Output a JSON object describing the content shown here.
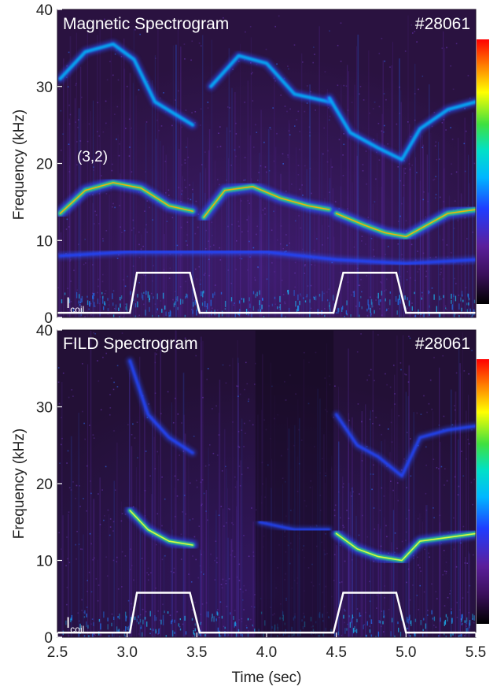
{
  "chart_data": [
    {
      "type": "heatmap",
      "title": "Magnetic Spectrogram",
      "shot_label": "#28061",
      "ylabel": "Frequency (kHz)",
      "xlim": [
        2.5,
        5.5
      ],
      "ylim": [
        0,
        40
      ],
      "y_ticks": [
        0,
        10,
        20,
        30,
        40
      ],
      "mode_label": "(3,2)",
      "coil_label_main": "I",
      "coil_label_sub": "coil",
      "colorbar": true,
      "colorscale": [
        "#000000",
        "#3a0f5a",
        "#5b1f9c",
        "#1f3cff",
        "#00b7ff",
        "#00e0c8",
        "#3fe03f",
        "#ffff00",
        "#ff8000",
        "#ff0000"
      ],
      "mode_traces": [
        {
          "name": "fundamental",
          "intensity": 1.0,
          "x": [
            2.52,
            2.7,
            2.9,
            3.1,
            3.3,
            3.47
          ],
          "y": [
            13.5,
            16.5,
            17.5,
            16.8,
            14.5,
            13.8
          ]
        },
        {
          "name": "fundamental",
          "intensity": 1.0,
          "x": [
            3.55,
            3.7,
            3.9,
            4.1,
            4.3,
            4.45
          ],
          "y": [
            13.0,
            16.5,
            17.0,
            15.5,
            14.5,
            14.0
          ]
        },
        {
          "name": "fundamental",
          "intensity": 1.0,
          "x": [
            4.5,
            4.7,
            4.85,
            5.0,
            5.15,
            5.3,
            5.5
          ],
          "y": [
            13.5,
            12.0,
            11.0,
            10.5,
            12.0,
            13.5,
            14.0
          ]
        },
        {
          "name": "harmonic",
          "intensity": 0.55,
          "x": [
            2.52,
            2.7,
            2.9,
            3.05,
            3.2,
            3.47
          ],
          "y": [
            31.0,
            34.5,
            35.5,
            33.5,
            28.0,
            25.0
          ]
        },
        {
          "name": "harmonic",
          "intensity": 0.55,
          "x": [
            3.6,
            3.8,
            4.0,
            4.2,
            4.45
          ],
          "y": [
            30.0,
            34.0,
            33.0,
            29.0,
            28.0
          ]
        },
        {
          "name": "harmonic",
          "intensity": 0.55,
          "x": [
            4.45,
            4.6,
            4.8,
            4.97,
            5.1,
            5.3,
            5.5
          ],
          "y": [
            28.5,
            24.0,
            22.0,
            20.5,
            24.5,
            27.0,
            28.0
          ]
        },
        {
          "name": "lower band",
          "intensity": 0.35,
          "x": [
            2.52,
            3.0,
            3.5,
            4.0,
            4.5,
            5.0,
            5.5
          ],
          "y": [
            8.0,
            8.5,
            8.5,
            8.5,
            7.5,
            7.0,
            7.5
          ]
        }
      ],
      "coil_current": {
        "x": [
          2.5,
          3.02,
          3.07,
          3.45,
          3.52,
          4.48,
          4.55,
          4.93,
          5.0,
          5.5
        ],
        "y": [
          0.6,
          0.6,
          5.8,
          5.8,
          0.6,
          0.6,
          5.8,
          5.8,
          0.6,
          0.6
        ]
      }
    },
    {
      "type": "heatmap",
      "title": "FILD Spectrogram",
      "shot_label": "#28061",
      "ylabel": "Frequency (kHz)",
      "xlabel": "Time (sec)",
      "xlim": [
        2.5,
        5.5
      ],
      "ylim": [
        0,
        40
      ],
      "y_ticks": [
        0,
        10,
        20,
        30,
        40
      ],
      "x_ticks": [
        2.5,
        3.0,
        3.5,
        4.0,
        4.5,
        5.0,
        5.5
      ],
      "x_tick_labels": [
        "2.5",
        "3.0",
        "3.5",
        "4.0",
        "4.5",
        "5.0",
        "5.5"
      ],
      "coil_label_main": "I",
      "coil_label_sub": "coil",
      "colorbar": true,
      "colorscale": [
        "#000000",
        "#3a0f5a",
        "#5b1f9c",
        "#1f3cff",
        "#00b7ff",
        "#00e0c8",
        "#3fe03f",
        "#ffff00",
        "#ff8000",
        "#ff0000"
      ],
      "mode_traces": [
        {
          "name": "fundamental",
          "intensity": 0.8,
          "x": [
            3.02,
            3.15,
            3.3,
            3.47
          ],
          "y": [
            16.5,
            14.0,
            12.5,
            12.0
          ]
        },
        {
          "name": "fundamental",
          "intensity": 0.25,
          "x": [
            3.95,
            4.2,
            4.45
          ],
          "y": [
            15.0,
            14.0,
            14.0
          ]
        },
        {
          "name": "fundamental",
          "intensity": 0.85,
          "x": [
            4.5,
            4.65,
            4.8,
            4.97,
            5.1,
            5.3,
            5.5
          ],
          "y": [
            13.5,
            11.5,
            10.5,
            10.0,
            12.5,
            13.0,
            13.5
          ]
        },
        {
          "name": "harmonic",
          "intensity": 0.35,
          "x": [
            3.02,
            3.15,
            3.3,
            3.47
          ],
          "y": [
            36.0,
            29.0,
            26.0,
            24.0
          ]
        },
        {
          "name": "harmonic",
          "intensity": 0.3,
          "x": [
            4.5,
            4.65,
            4.8,
            4.97,
            5.1,
            5.3,
            5.5
          ],
          "y": [
            29.0,
            25.0,
            23.5,
            21.0,
            26.0,
            27.0,
            27.5
          ]
        }
      ],
      "dark_interval": [
        3.92,
        4.48
      ],
      "coil_current": {
        "x": [
          2.5,
          3.02,
          3.07,
          3.45,
          3.52,
          4.48,
          4.55,
          4.93,
          5.0,
          5.5
        ],
        "y": [
          0.6,
          0.6,
          5.8,
          5.8,
          0.6,
          0.6,
          5.8,
          5.8,
          0.6,
          0.6
        ]
      }
    }
  ]
}
